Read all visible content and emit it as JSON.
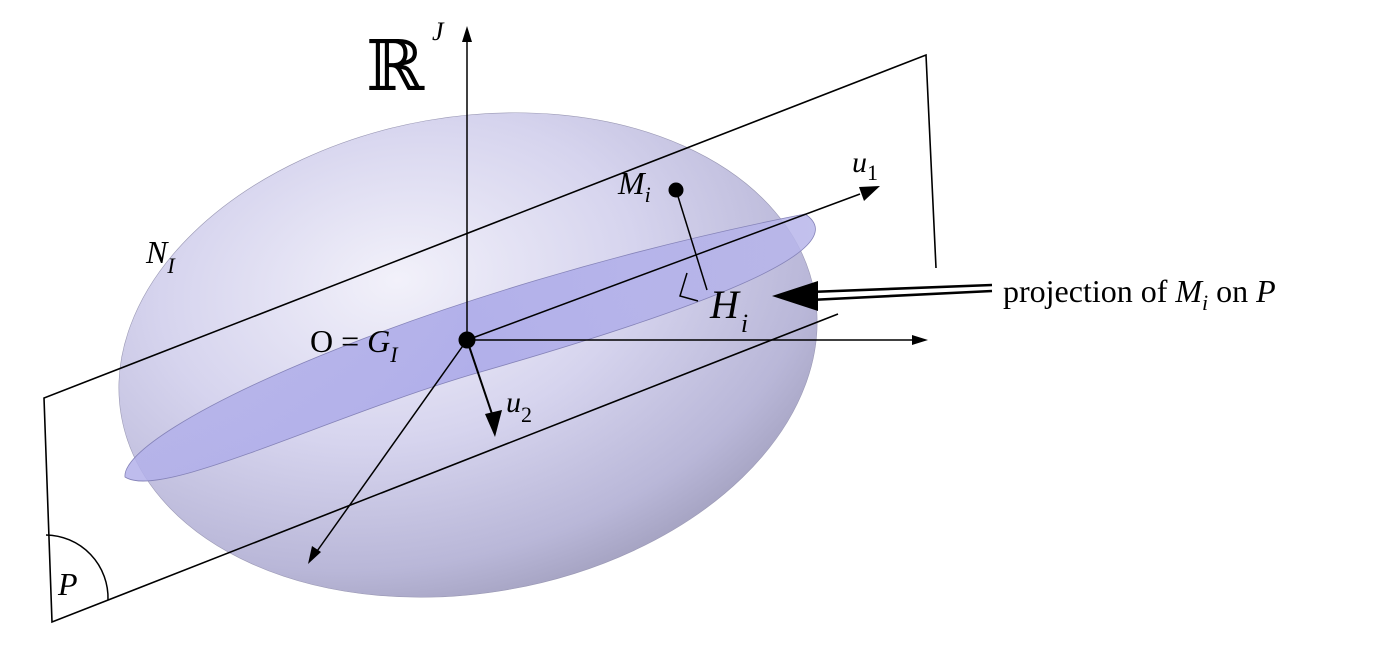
{
  "labels": {
    "space_symbol": "ℝ",
    "space_exponent": "J",
    "cloud": "N",
    "cloud_sub": "I",
    "origin_prefix": "O = ",
    "origin_G": "G",
    "origin_sub": "I",
    "point_M": "M",
    "point_M_sub": "i",
    "point_H": "H",
    "point_H_sub": "i",
    "axis_u1": "u",
    "axis_u1_sub": "1",
    "axis_u2": "u",
    "axis_u2_sub": "2",
    "plane": "P"
  },
  "annotation": {
    "prefix": "projection of ",
    "M": "M",
    "M_sub": "i",
    "middle": " on ",
    "P": "P"
  },
  "colors": {
    "ellipsoid_light": "#e9e8f4",
    "ellipsoid_mid": "#c9c7e6",
    "ellipsoid_dark": "#a8a6c8",
    "inner_ellipse": "#a7a5e6",
    "stroke": "#000000"
  }
}
